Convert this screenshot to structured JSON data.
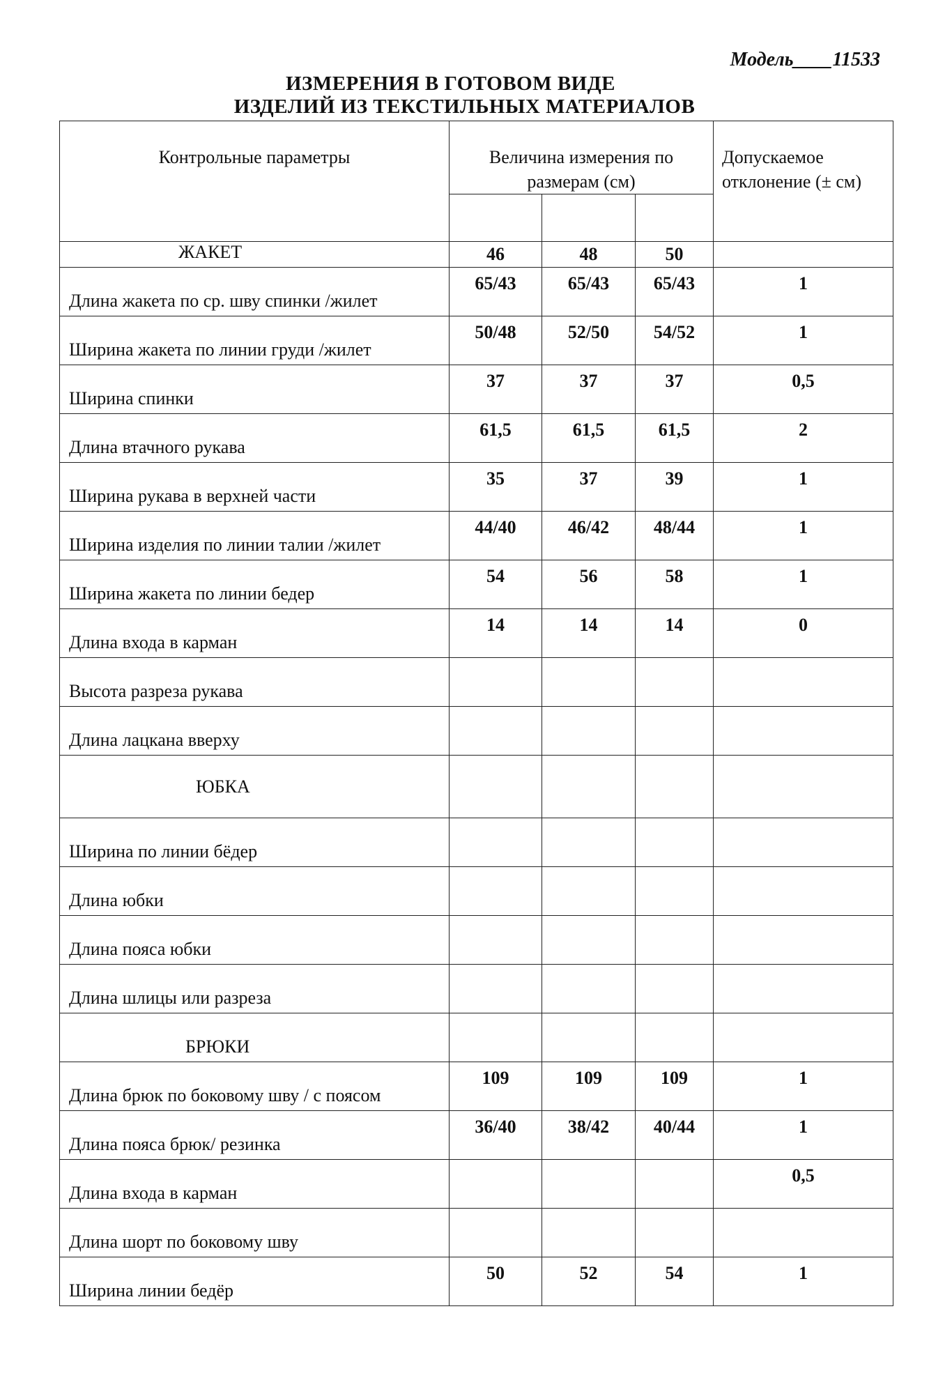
{
  "model": "Модель____11533",
  "title_line1": "ИЗМЕРЕНИЯ  В  ГОТОВОМ  ВИДЕ",
  "title_line2": "ИЗДЕЛИЙ ИЗ ТЕКСТИЛЬНЫХ  МАТЕРИАЛОВ",
  "header": {
    "params": "Контрольные параметры",
    "measure": "Величина измерения по размерам (см)",
    "tolerance": "Допускаемое отклонение (± см)"
  },
  "rows": [
    {
      "type": "section",
      "label": "ЖАКЕТ",
      "v": [
        "46",
        "48",
        "50"
      ],
      "tol": ""
    },
    {
      "label": "Длина жакета по  ср. шву спинки /жилет",
      "v": [
        "65/43",
        "65/43",
        "65/43"
      ],
      "tol": "1"
    },
    {
      "label": "Ширина  жакета по линии груди /жилет",
      "v": [
        "50/48",
        "52/50",
        "54/52"
      ],
      "tol": "1"
    },
    {
      "label": "Ширина  спинки",
      "v": [
        "37",
        "37",
        "37"
      ],
      "tol": "0,5"
    },
    {
      "label": "Длина втачного рукава",
      "v": [
        "61,5",
        "61,5",
        "61,5"
      ],
      "tol": "2"
    },
    {
      "label": "Ширина рукава в верхней части",
      "v": [
        "35",
        "37",
        "39"
      ],
      "tol": "1"
    },
    {
      "label": "Ширина изделия по линии талии /жилет",
      "v": [
        "44/40",
        "46/42",
        "48/44"
      ],
      "tol": "1"
    },
    {
      "label": "Ширина жакета по линии бедер",
      "v": [
        "54",
        "56",
        "58"
      ],
      "tol": "1"
    },
    {
      "label": "Длина входа в карман",
      "v": [
        "14",
        "14",
        "14"
      ],
      "tol": "0"
    },
    {
      "label": "Высота разреза рукава",
      "v": [
        "",
        "",
        ""
      ],
      "tol": ""
    },
    {
      "label": "Длина лацкана вверху",
      "v": [
        "",
        "",
        ""
      ],
      "tol": ""
    },
    {
      "type": "section2",
      "label": "ЮБКА",
      "v": [
        "",
        "",
        ""
      ],
      "tol": ""
    },
    {
      "label": "Ширина  по линии бёдер",
      "v": [
        "",
        "",
        ""
      ],
      "tol": ""
    },
    {
      "label": "Длина юбки",
      "v": [
        "",
        "",
        ""
      ],
      "tol": ""
    },
    {
      "label": "Длина пояса юбки",
      "v": [
        "",
        "",
        ""
      ],
      "tol": ""
    },
    {
      "label": "Длина шлицы или разреза",
      "v": [
        "",
        "",
        ""
      ],
      "tol": ""
    },
    {
      "type": "section3",
      "label": "БРЮКИ",
      "v": [
        "",
        "",
        ""
      ],
      "tol": ""
    },
    {
      "label": "Длина брюк по  боковому шву / с поясом",
      "v": [
        "109",
        "109",
        "109"
      ],
      "tol": "1"
    },
    {
      "label": "Длина пояса брюк/ резинка",
      "v": [
        "36/40",
        "38/42",
        "40/44"
      ],
      "tol": "1"
    },
    {
      "label": "Длина входа в карман",
      "v": [
        "",
        "",
        ""
      ],
      "tol": "0,5"
    },
    {
      "label": "Длина шорт по боковому шву",
      "v": [
        "",
        "",
        ""
      ],
      "tol": ""
    },
    {
      "label": "Ширина линии бедёр",
      "v": [
        "50",
        "52",
        "54"
      ],
      "tol": "1"
    }
  ]
}
